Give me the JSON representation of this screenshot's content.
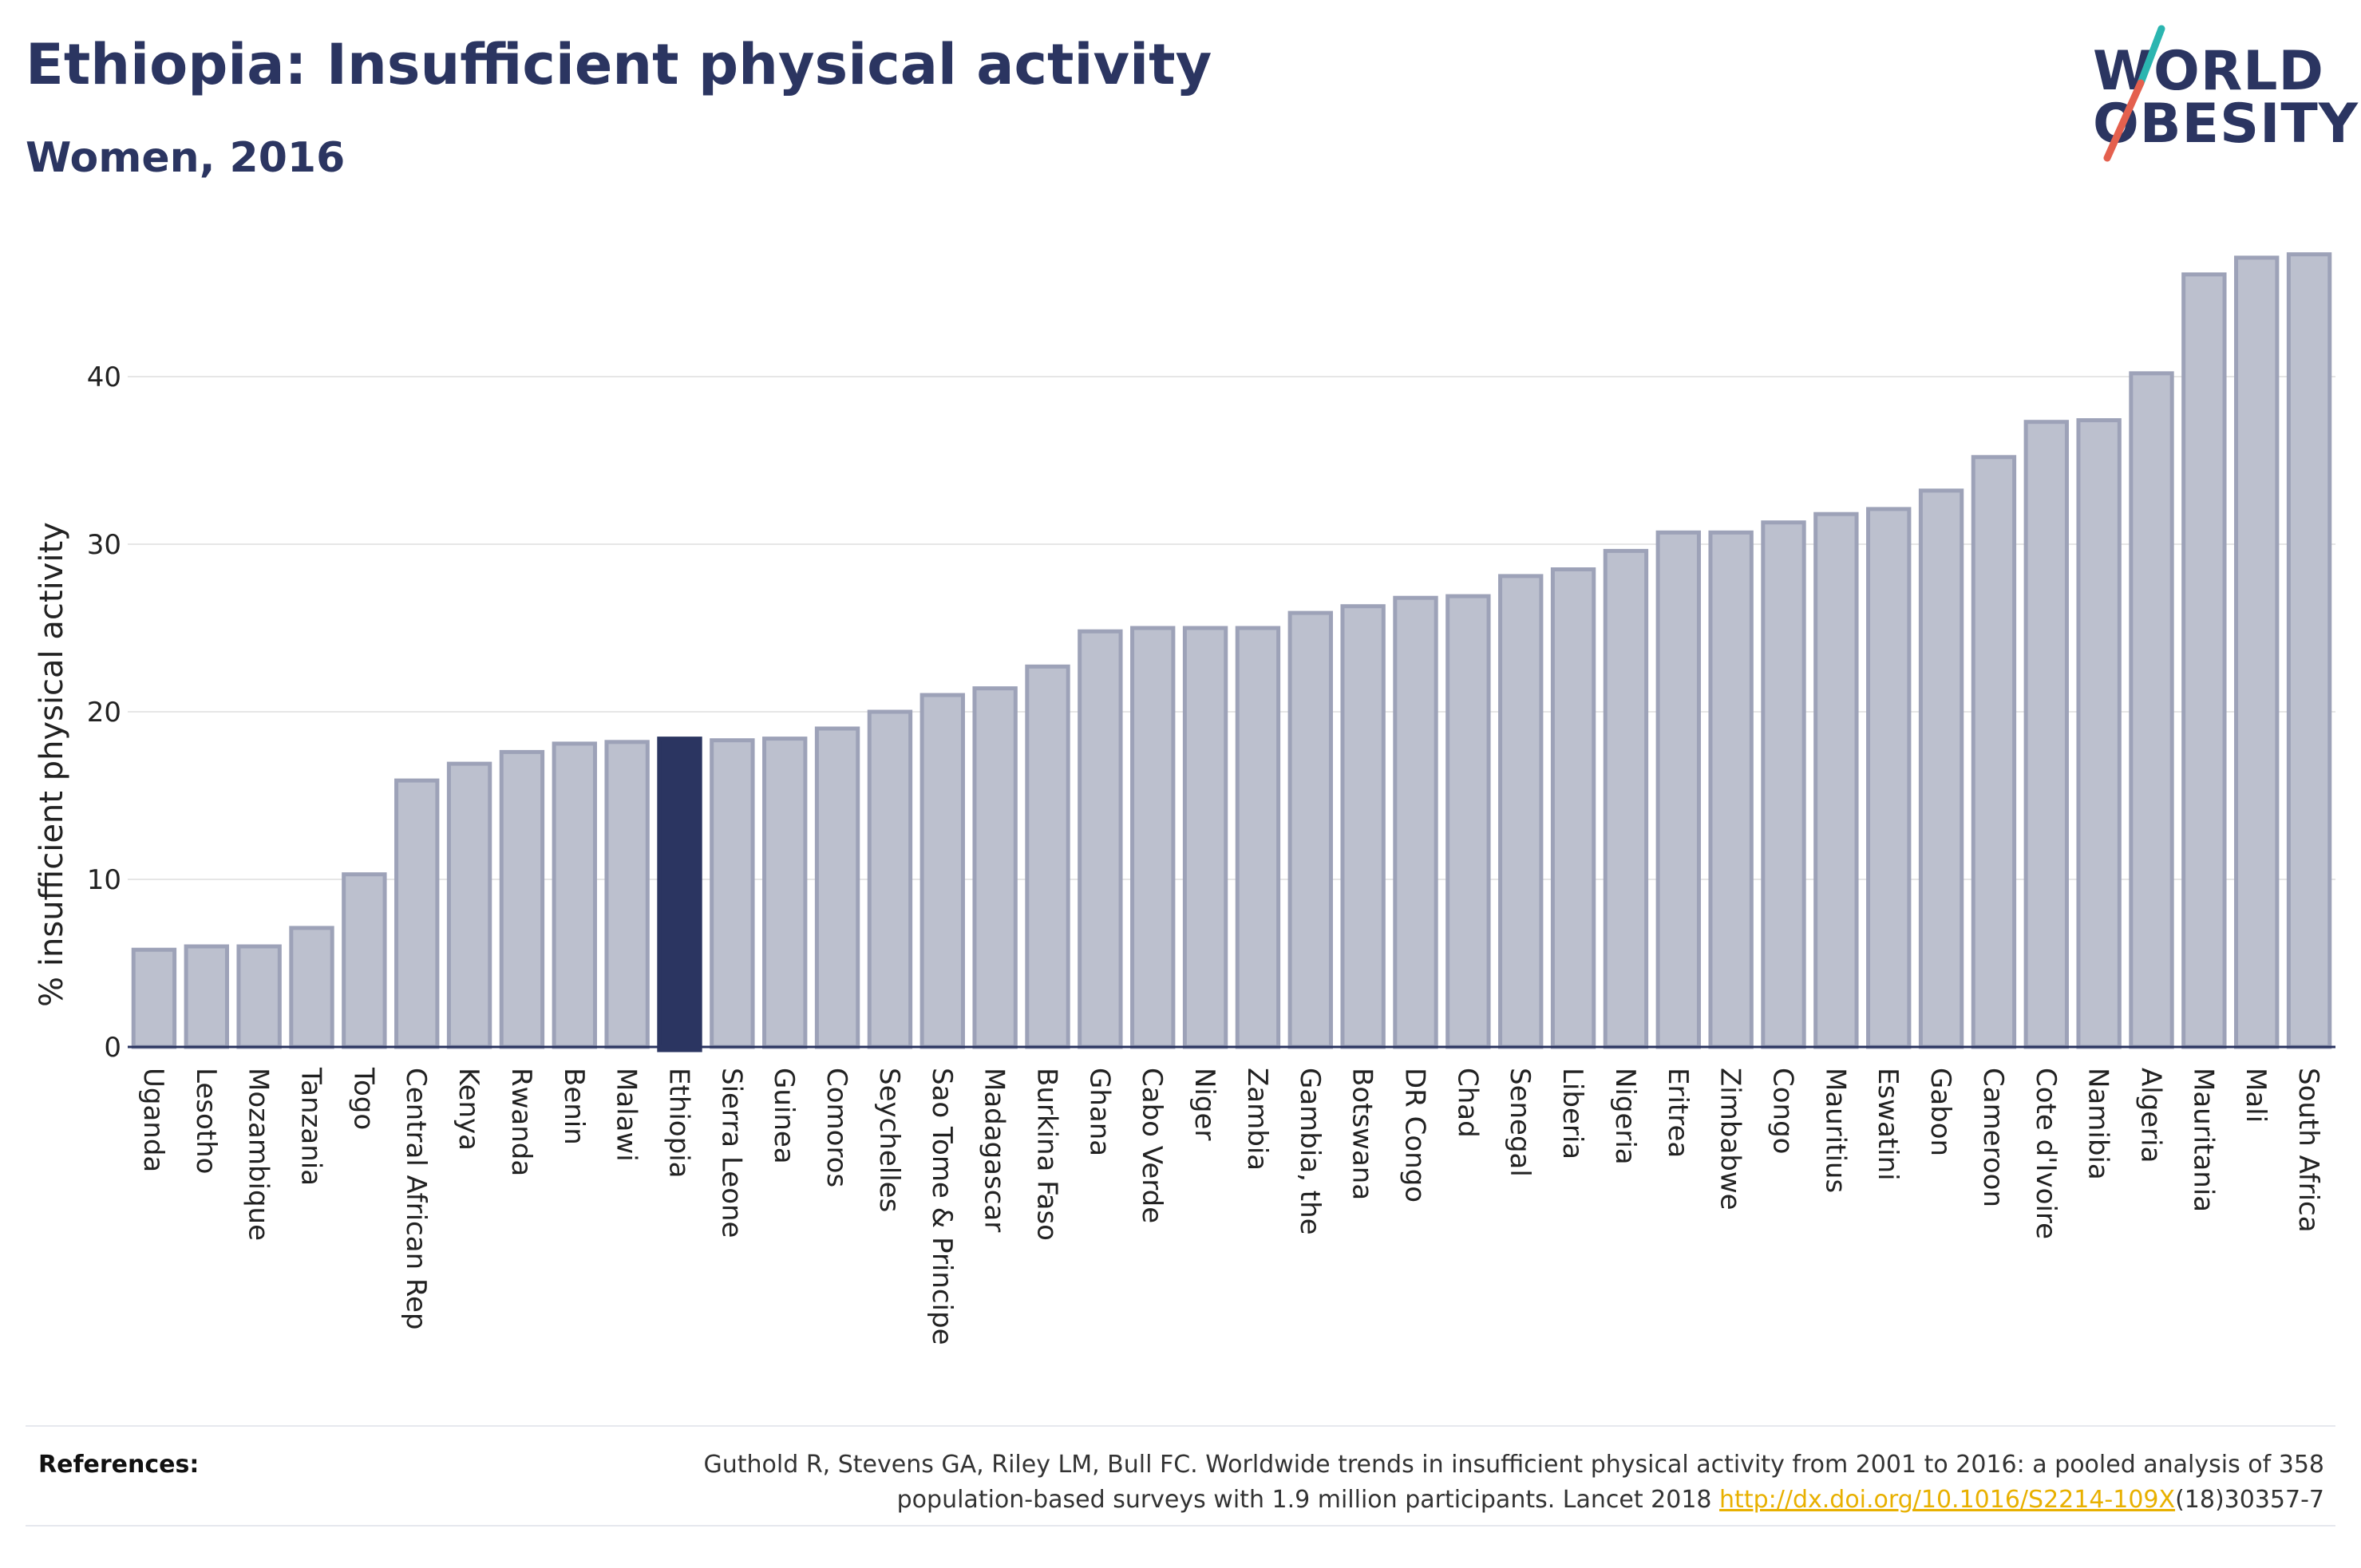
{
  "header": {
    "title": "Ethiopia: Insufficient physical activity",
    "subtitle": "Women, 2016"
  },
  "logo": {
    "line1": "WORLD",
    "line2": "OBESITY",
    "colors": {
      "text": "#2b3561",
      "slash_teal": "#2bb5b0",
      "slash_red": "#e4604e"
    }
  },
  "references": {
    "label": "References:",
    "text_line1": "Guthold R, Stevens GA, Riley LM, Bull FC. Worldwide trends in insufficient physical activity from 2001 to 2016: a pooled analysis of 358",
    "text_line2_pre": "population-based surveys with 1.9 million participants. Lancet 2018 ",
    "link": "http://dx.doi.org/10.1016/S2214-109X",
    "text_line2_post": "(18)30357-7"
  },
  "colors": {
    "bar": "#bcc0ce",
    "bar_stroke": "#9da2b8",
    "highlight": "#2b3561",
    "grid": "#e6e6e6",
    "axis": "#2b3561"
  },
  "chart_data": {
    "type": "bar",
    "title": "Ethiopia: Insufficient physical activity",
    "subtitle": "Women, 2016",
    "xlabel": "",
    "ylabel": "% insufficient physical activity",
    "ylim": [
      0,
      48
    ],
    "yticks": [
      0,
      10,
      20,
      30,
      40
    ],
    "grid": true,
    "highlight": "Ethiopia",
    "categories": [
      "Uganda",
      "Lesotho",
      "Mozambique",
      "Tanzania",
      "Togo",
      "Central African Rep",
      "Kenya",
      "Rwanda",
      "Benin",
      "Malawi",
      "Ethiopia",
      "Sierra Leone",
      "Guinea",
      "Comoros",
      "Seychelles",
      "Sao Tome & Principe",
      "Madagascar",
      "Burkina Faso",
      "Ghana",
      "Cabo Verde",
      "Niger",
      "Zambia",
      "Gambia, the",
      "Botswana",
      "DR Congo",
      "Chad",
      "Senegal",
      "Liberia",
      "Nigeria",
      "Eritrea",
      "Zimbabwe",
      "Congo",
      "Mauritius",
      "Eswatini",
      "Gabon",
      "Cameroon",
      "Cote d'Ivoire",
      "Namibia",
      "Algeria",
      "Mauritania",
      "Mali",
      "South Africa"
    ],
    "values": [
      5.8,
      6.0,
      6.0,
      7.1,
      10.3,
      15.9,
      16.9,
      17.6,
      18.1,
      18.2,
      18.4,
      18.3,
      18.4,
      19.0,
      20.0,
      21.0,
      21.4,
      22.7,
      24.8,
      25.0,
      25.0,
      25.0,
      25.9,
      26.3,
      26.8,
      26.9,
      28.1,
      28.5,
      29.6,
      30.7,
      30.7,
      31.3,
      31.8,
      32.1,
      33.2,
      35.2,
      37.3,
      37.4,
      40.2,
      46.1,
      47.1,
      47.3
    ]
  }
}
